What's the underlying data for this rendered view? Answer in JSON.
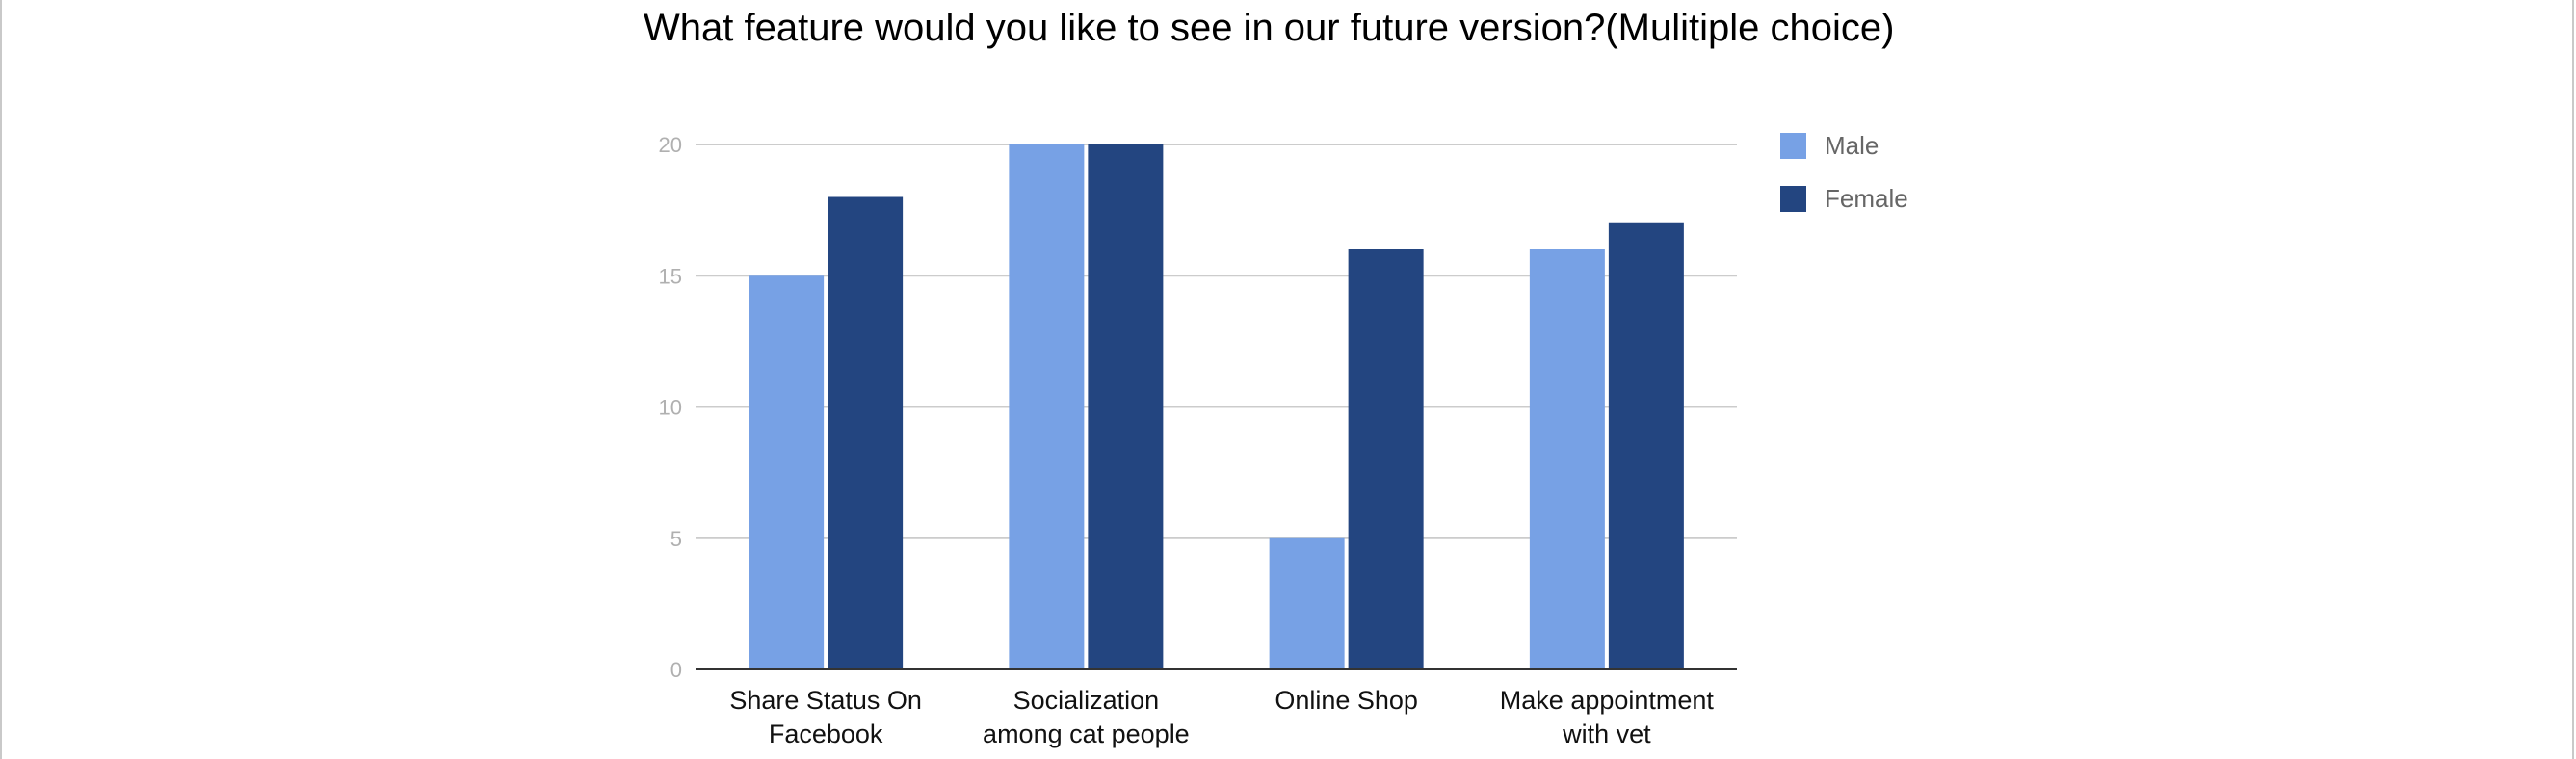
{
  "chart_data": {
    "type": "bar",
    "title": "What feature would you like to see in our future version?(Mulitiple choice)",
    "xlabel": "",
    "ylabel": "",
    "categories": [
      [
        "Share Status On",
        "Facebook"
      ],
      [
        "Socialization",
        "among cat people"
      ],
      [
        "Online Shop"
      ],
      [
        "Make appointment",
        "with vet"
      ]
    ],
    "series": [
      {
        "name": "Male",
        "color": "#77a1e5",
        "values": [
          15,
          20,
          5,
          16
        ]
      },
      {
        "name": "Female",
        "color": "#234580",
        "values": [
          18,
          20,
          16,
          17
        ]
      }
    ],
    "ylim": [
      0,
      20
    ],
    "yticks": [
      0,
      5,
      10,
      15,
      20
    ],
    "grid": true,
    "legend": "right"
  }
}
